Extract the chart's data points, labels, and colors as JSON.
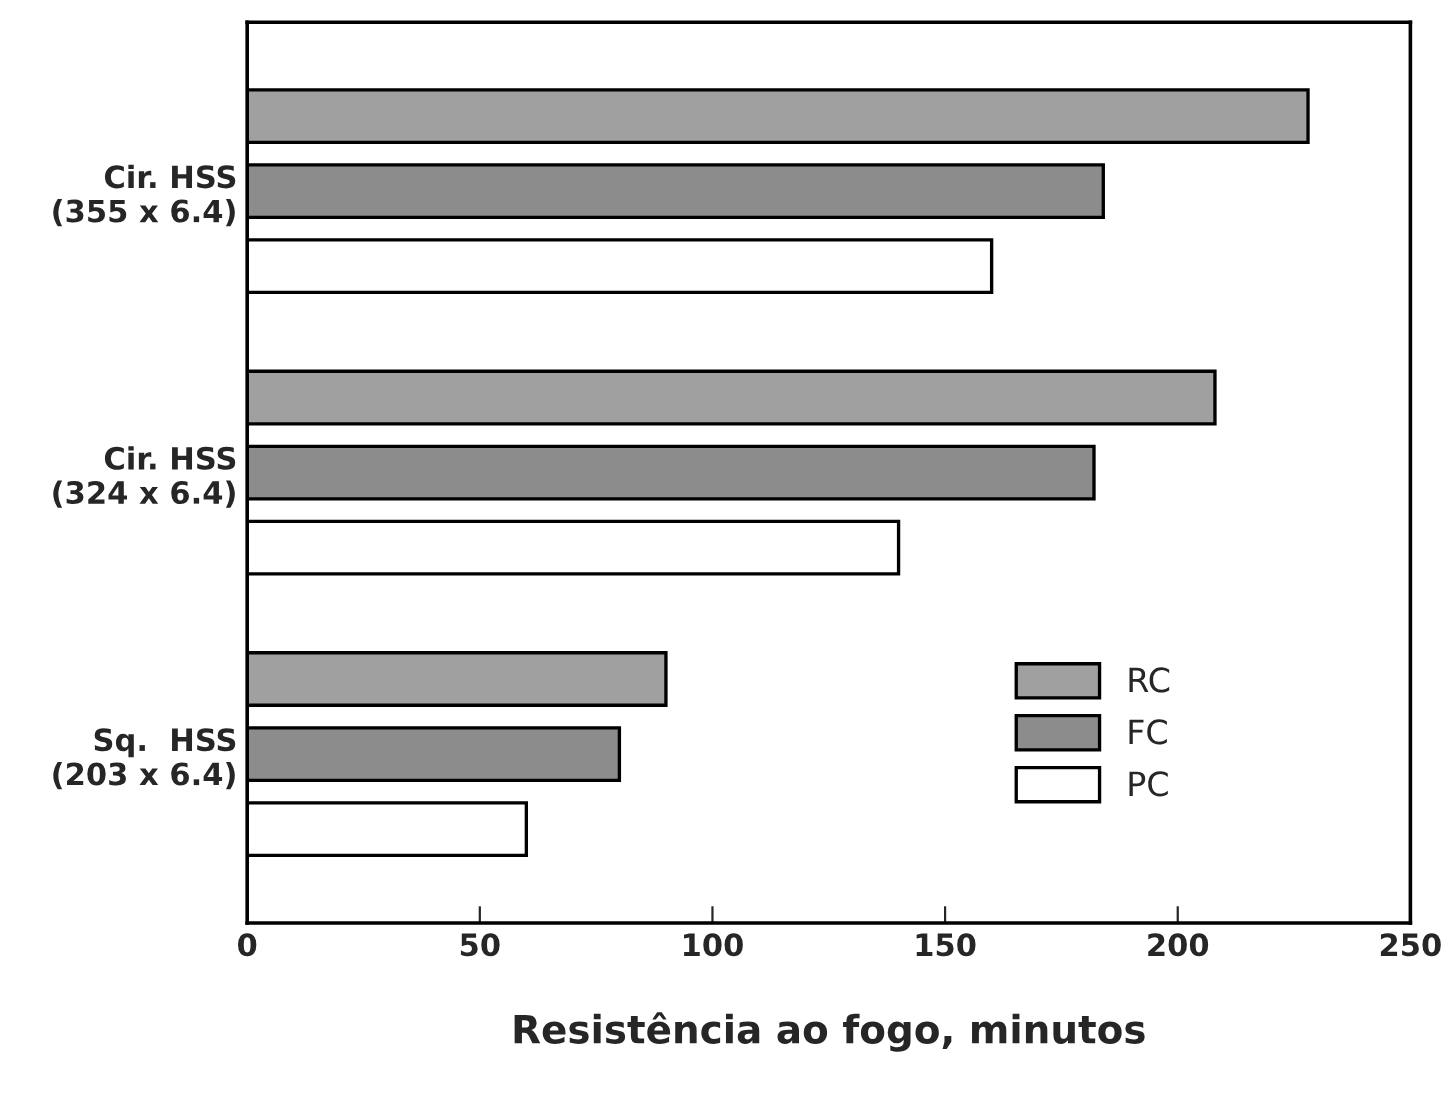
{
  "chart_data": {
    "type": "bar",
    "orientation": "horizontal",
    "xlabel": "Resistência ao fogo, minutos",
    "categories": [
      "Cir. HSS\n(355 x 6.4)",
      "Cir. HSS\n(324 x 6.4)",
      "Sq.  HSS\n(203 x 6.4)"
    ],
    "series": [
      {
        "name": "RC",
        "color": "#a0a0a0",
        "values": [
          228,
          208,
          90
        ]
      },
      {
        "name": "FC",
        "color": "#8c8c8c",
        "values": [
          184,
          182,
          80
        ]
      },
      {
        "name": "PC",
        "color": "#ffffff",
        "values": [
          160,
          140,
          60
        ]
      }
    ],
    "xlim": [
      0,
      250
    ],
    "xticks": [
      0,
      50,
      100,
      150,
      200,
      250
    ],
    "grid": false,
    "legend": "bottom right"
  }
}
